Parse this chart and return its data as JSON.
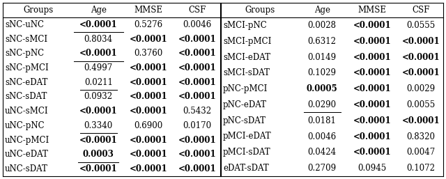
{
  "left_table": {
    "headers": [
      "Groups",
      "Age",
      "MMSE",
      "CSF"
    ],
    "rows": [
      {
        "group": "sNC-uNC",
        "age": {
          "text": "<0.0001",
          "bold": true,
          "underline": true
        },
        "mmse": {
          "text": "0.5276",
          "bold": false,
          "underline": false
        },
        "csf": {
          "text": "0.0046",
          "bold": false,
          "underline": false
        }
      },
      {
        "group": "sNC-sMCI",
        "age": {
          "text": "0.8034",
          "bold": false,
          "underline": false
        },
        "mmse": {
          "text": "<0.0001",
          "bold": true,
          "underline": false
        },
        "csf": {
          "text": "<0.0001",
          "bold": true,
          "underline": false
        }
      },
      {
        "group": "sNC-pNC",
        "age": {
          "text": "<0.0001",
          "bold": true,
          "underline": true
        },
        "mmse": {
          "text": "0.3760",
          "bold": false,
          "underline": false
        },
        "csf": {
          "text": "<0.0001",
          "bold": true,
          "underline": false
        }
      },
      {
        "group": "sNC-pMCI",
        "age": {
          "text": "0.4997",
          "bold": false,
          "underline": false
        },
        "mmse": {
          "text": "<0.0001",
          "bold": true,
          "underline": false
        },
        "csf": {
          "text": "<0.0001",
          "bold": true,
          "underline": false
        }
      },
      {
        "group": "sNC-eDAT",
        "age": {
          "text": "0.0211",
          "bold": false,
          "underline": true
        },
        "mmse": {
          "text": "<0.0001",
          "bold": true,
          "underline": false
        },
        "csf": {
          "text": "<0.0001",
          "bold": true,
          "underline": false
        }
      },
      {
        "group": "sNC-sDAT",
        "age": {
          "text": "0.0932",
          "bold": false,
          "underline": false
        },
        "mmse": {
          "text": "<0.0001",
          "bold": true,
          "underline": false
        },
        "csf": {
          "text": "<0.0001",
          "bold": true,
          "underline": false
        }
      },
      {
        "group": "uNC-sMCI",
        "age": {
          "text": "<0.0001",
          "bold": true,
          "underline": false
        },
        "mmse": {
          "text": "<0.0001",
          "bold": true,
          "underline": false
        },
        "csf": {
          "text": "0.5432",
          "bold": false,
          "underline": false
        }
      },
      {
        "group": "uNC-pNC",
        "age": {
          "text": "0.3340",
          "bold": false,
          "underline": true
        },
        "mmse": {
          "text": "0.6900",
          "bold": false,
          "underline": false
        },
        "csf": {
          "text": "0.0170",
          "bold": false,
          "underline": false
        }
      },
      {
        "group": "uNC-pMCI",
        "age": {
          "text": "<0.0001",
          "bold": true,
          "underline": false
        },
        "mmse": {
          "text": "<0.0001",
          "bold": true,
          "underline": false
        },
        "csf": {
          "text": "<0.0001",
          "bold": true,
          "underline": false
        }
      },
      {
        "group": "uNC-eDAT",
        "age": {
          "text": "0.0003",
          "bold": true,
          "underline": true
        },
        "mmse": {
          "text": "<0.0001",
          "bold": true,
          "underline": false
        },
        "csf": {
          "text": "<0.0001",
          "bold": true,
          "underline": false
        }
      },
      {
        "group": "uNC-sDAT",
        "age": {
          "text": "<0.0001",
          "bold": true,
          "underline": false
        },
        "mmse": {
          "text": "<0.0001",
          "bold": true,
          "underline": false
        },
        "csf": {
          "text": "<0.0001",
          "bold": true,
          "underline": false
        }
      }
    ]
  },
  "right_table": {
    "headers": [
      "Groups",
      "Age",
      "MMSE",
      "CSF"
    ],
    "rows": [
      {
        "group": "sMCI-pNC",
        "age": {
          "text": "0.0028",
          "bold": false,
          "underline": false
        },
        "mmse": {
          "text": "<0.0001",
          "bold": true,
          "underline": false
        },
        "csf": {
          "text": "0.0555",
          "bold": false,
          "underline": false
        }
      },
      {
        "group": "sMCI-pMCI",
        "age": {
          "text": "0.6312",
          "bold": false,
          "underline": false
        },
        "mmse": {
          "text": "<0.0001",
          "bold": true,
          "underline": false
        },
        "csf": {
          "text": "<0.0001",
          "bold": true,
          "underline": false
        }
      },
      {
        "group": "sMCI-eDAT",
        "age": {
          "text": "0.0149",
          "bold": false,
          "underline": false
        },
        "mmse": {
          "text": "<0.0001",
          "bold": true,
          "underline": false
        },
        "csf": {
          "text": "<0.0001",
          "bold": true,
          "underline": false
        }
      },
      {
        "group": "sMCI-sDAT",
        "age": {
          "text": "0.1029",
          "bold": false,
          "underline": false
        },
        "mmse": {
          "text": "<0.0001",
          "bold": true,
          "underline": false
        },
        "csf": {
          "text": "<0.0001",
          "bold": true,
          "underline": false
        }
      },
      {
        "group": "pNC-pMCI",
        "age": {
          "text": "0.0005",
          "bold": true,
          "underline": false
        },
        "mmse": {
          "text": "<0.0001",
          "bold": true,
          "underline": false
        },
        "csf": {
          "text": "0.0029",
          "bold": false,
          "underline": false
        }
      },
      {
        "group": "pNC-eDAT",
        "age": {
          "text": "0.0290",
          "bold": false,
          "underline": true
        },
        "mmse": {
          "text": "<0.0001",
          "bold": true,
          "underline": false
        },
        "csf": {
          "text": "0.0055",
          "bold": false,
          "underline": false
        }
      },
      {
        "group": "pNC-sDAT",
        "age": {
          "text": "0.0181",
          "bold": false,
          "underline": false
        },
        "mmse": {
          "text": "<0.0001",
          "bold": true,
          "underline": false
        },
        "csf": {
          "text": "<0.0001",
          "bold": true,
          "underline": false
        }
      },
      {
        "group": "pMCI-eDAT",
        "age": {
          "text": "0.0046",
          "bold": false,
          "underline": false
        },
        "mmse": {
          "text": "<0.0001",
          "bold": true,
          "underline": false
        },
        "csf": {
          "text": "0.8320",
          "bold": false,
          "underline": false
        }
      },
      {
        "group": "pMCI-sDAT",
        "age": {
          "text": "0.0424",
          "bold": false,
          "underline": false
        },
        "mmse": {
          "text": "<0.0001",
          "bold": true,
          "underline": false
        },
        "csf": {
          "text": "0.0047",
          "bold": false,
          "underline": false
        }
      },
      {
        "group": "eDAT-sDAT",
        "age": {
          "text": "0.2709",
          "bold": false,
          "underline": false
        },
        "mmse": {
          "text": "0.0945",
          "bold": false,
          "underline": false
        },
        "csf": {
          "text": "0.1072",
          "bold": false,
          "underline": false
        }
      }
    ]
  },
  "font_size": 8.5,
  "bg_color": "#ffffff"
}
